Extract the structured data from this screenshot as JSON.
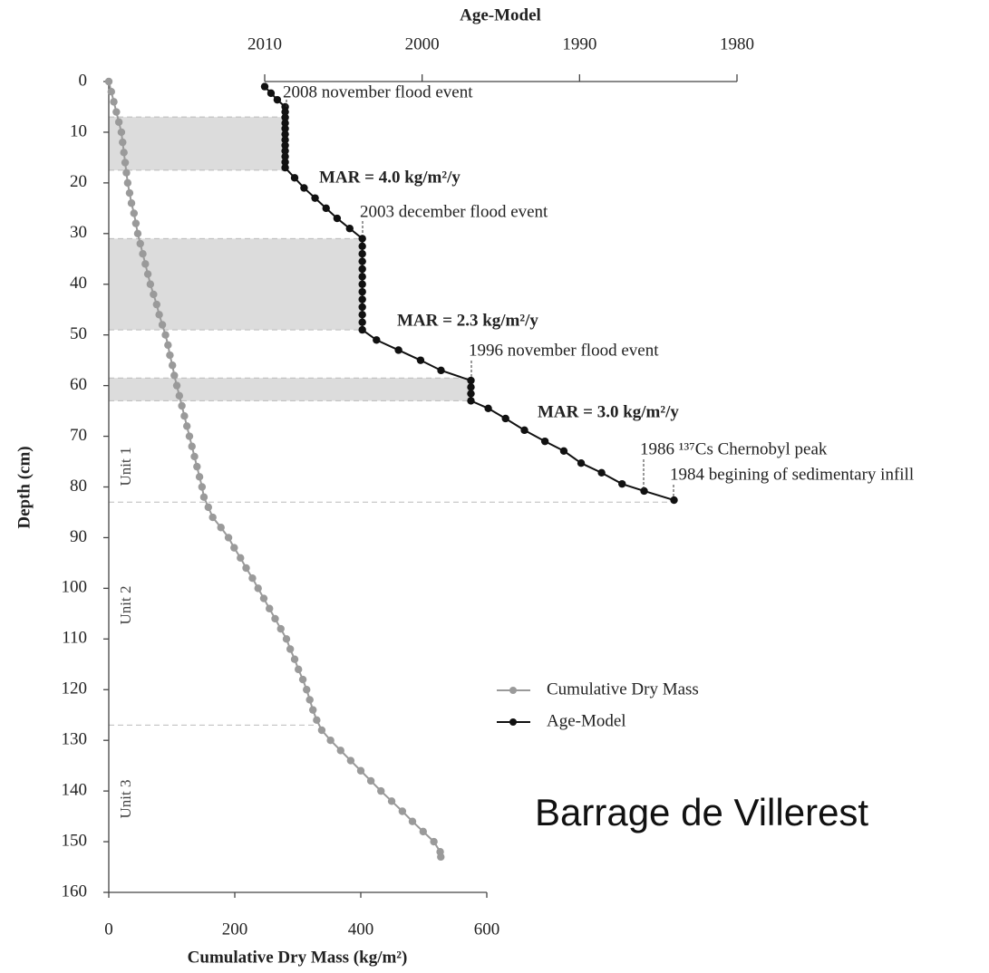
{
  "chart_data": {
    "type": "scatter-line",
    "title": "Age-Model",
    "xlabel": "Cumulative Dry Mass (kg/m²)",
    "ylabel": "Depth (cm)",
    "brand": "Barrage de Villerest",
    "ylim": [
      0,
      160
    ],
    "yticks": [
      0,
      10,
      20,
      30,
      40,
      50,
      60,
      70,
      80,
      90,
      100,
      110,
      120,
      130,
      140,
      150,
      160
    ],
    "invert_y": true,
    "xlim": [
      0,
      600
    ],
    "xticks": [
      0,
      200,
      400,
      600
    ],
    "x2lim": [
      2010,
      1980
    ],
    "x2ticks": [
      2010,
      2000,
      1990,
      1980
    ],
    "legend": "lower right",
    "series": [
      {
        "name": "Cumulative Dry Mass",
        "color": "#9a9a9a",
        "x": [
          0,
          4,
          8,
          12,
          16,
          20,
          22,
          24,
          26,
          28,
          30,
          33,
          36,
          40,
          43,
          46,
          50,
          54,
          58,
          62,
          66,
          71,
          76,
          80,
          85,
          90,
          94,
          97,
          101,
          104,
          108,
          112,
          116,
          120,
          124,
          128,
          132,
          136,
          140,
          144,
          148,
          151,
          158,
          165,
          178,
          190,
          199,
          209,
          218,
          228,
          237,
          246,
          255,
          264,
          273,
          282,
          288,
          295,
          301,
          308,
          314,
          319,
          324,
          330,
          338,
          352,
          368,
          384,
          400,
          416,
          432,
          449,
          466,
          482,
          499,
          516,
          526,
          527
        ],
        "y": [
          0,
          2,
          4,
          6,
          8,
          10,
          12,
          14,
          16,
          18,
          20,
          22,
          24,
          26,
          28,
          30,
          32,
          34,
          36,
          38,
          40,
          42,
          44,
          46,
          48,
          50,
          52,
          54,
          56,
          58,
          60,
          62,
          64,
          66,
          68,
          70,
          72,
          74,
          76,
          78,
          80,
          82,
          84,
          86,
          88,
          90,
          92,
          94,
          96,
          98,
          100,
          102,
          104,
          106,
          108,
          110,
          112,
          114,
          116,
          118,
          120,
          122,
          124,
          126,
          128,
          130,
          132,
          134,
          136,
          138,
          140,
          142,
          144,
          146,
          148,
          150,
          152,
          153
        ]
      },
      {
        "name": "Age-Model",
        "color": "#111111",
        "axis": "x2",
        "x": [
          2010.0,
          2009.6,
          2009.2,
          2008.7,
          2008.7,
          2008.7,
          2008.7,
          2008.7,
          2008.7,
          2008.7,
          2008.7,
          2008.7,
          2008.7,
          2008.7,
          2008.7,
          2008.1,
          2007.5,
          2006.8,
          2006.1,
          2005.4,
          2004.6,
          2003.8,
          2003.8,
          2003.8,
          2003.8,
          2003.8,
          2003.8,
          2003.8,
          2003.8,
          2003.8,
          2003.8,
          2003.8,
          2003.8,
          2003.8,
          2002.9,
          2001.5,
          2000.1,
          1998.8,
          1996.9,
          1996.9,
          1996.9,
          1996.9,
          1995.8,
          1994.7,
          1993.5,
          1992.2,
          1991.0,
          1989.9,
          1988.6,
          1987.3,
          1985.9,
          1984.0
        ],
        "y": [
          1,
          2.3,
          3.6,
          5,
          6,
          7.1,
          8.2,
          9.3,
          10.4,
          11.5,
          12.6,
          13.7,
          14.8,
          15.9,
          17,
          19,
          21,
          23,
          25,
          27,
          29,
          31,
          32.5,
          34,
          35.5,
          37,
          38.5,
          40,
          41.5,
          43,
          44.5,
          46,
          47.5,
          49,
          51,
          53,
          55,
          57,
          59,
          60.3,
          61.6,
          63,
          64.5,
          66.5,
          68.8,
          71,
          72.9,
          75.3,
          77.2,
          79.4,
          80.8,
          82.6
        ]
      }
    ],
    "shaded_bands": [
      {
        "from": 7,
        "to": 17.5,
        "until": 2008.7
      },
      {
        "from": 31,
        "to": 49,
        "until": 2003.8
      },
      {
        "from": 58.5,
        "to": 63,
        "until": 1996.9
      }
    ],
    "units": [
      {
        "label": "Unit 1",
        "bottom": 83
      },
      {
        "label": "Unit 2",
        "bottom": 127
      },
      {
        "label": "Unit 3"
      }
    ],
    "annotations": [
      "2008 november flood event",
      "MAR = 4.0 kg/m²/y",
      "2003 december flood event",
      "MAR = 2.3 kg/m²/y",
      "1996 november flood event",
      "MAR = 3.0 kg/m²/y",
      "1986 ¹³⁷Cs Chernobyl peak",
      "1984 begining of sedimentary infill"
    ]
  }
}
